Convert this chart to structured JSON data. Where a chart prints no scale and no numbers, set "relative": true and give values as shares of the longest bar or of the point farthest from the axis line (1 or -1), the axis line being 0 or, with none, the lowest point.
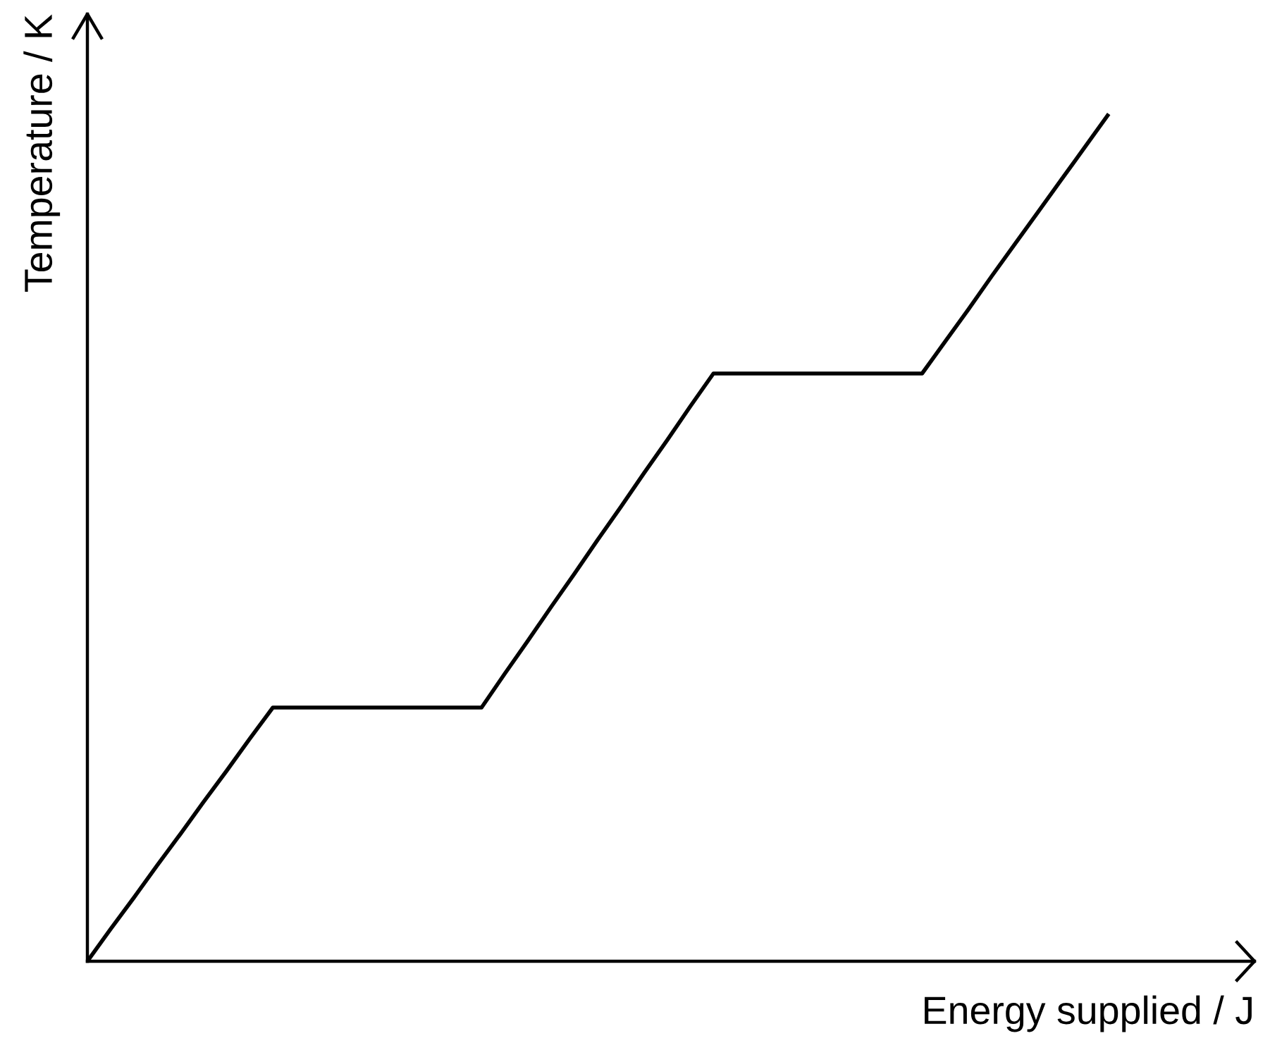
{
  "chart_data": {
    "type": "line",
    "relative": true,
    "xlabel": "Energy supplied / J",
    "ylabel": "Temperature / K",
    "categories": [
      null,
      null,
      null,
      null,
      null,
      null,
      null,
      null,
      null,
      null,
      null,
      null,
      null,
      null,
      null,
      null,
      null,
      null,
      null,
      null,
      null,
      null,
      null,
      null,
      null,
      null,
      null,
      null,
      null,
      null,
      null,
      null,
      null,
      null,
      null,
      null,
      null,
      null,
      null,
      null,
      null,
      null,
      null,
      null,
      null
    ],
    "series": [
      {
        "color": "#000000",
        "values": [
          0,
          0.038,
          0.075,
          0.113,
          0.15,
          0.188,
          0.225,
          0.263,
          0.3,
          0.3,
          0.3,
          0.3,
          0.3,
          0.3,
          0.3,
          0.3,
          0.3,
          0.3,
          0.34,
          0.379,
          0.419,
          0.458,
          0.498,
          0.537,
          0.577,
          0.616,
          0.656,
          0.695,
          0.695,
          0.695,
          0.695,
          0.695,
          0.695,
          0.695,
          0.695,
          0.695,
          0.695,
          0.733,
          0.771,
          0.81,
          0.848,
          0.886,
          0.924,
          0.962,
          1
        ]
      }
    ],
    "marker": "none",
    "line_style": "solid",
    "legend": false
  }
}
